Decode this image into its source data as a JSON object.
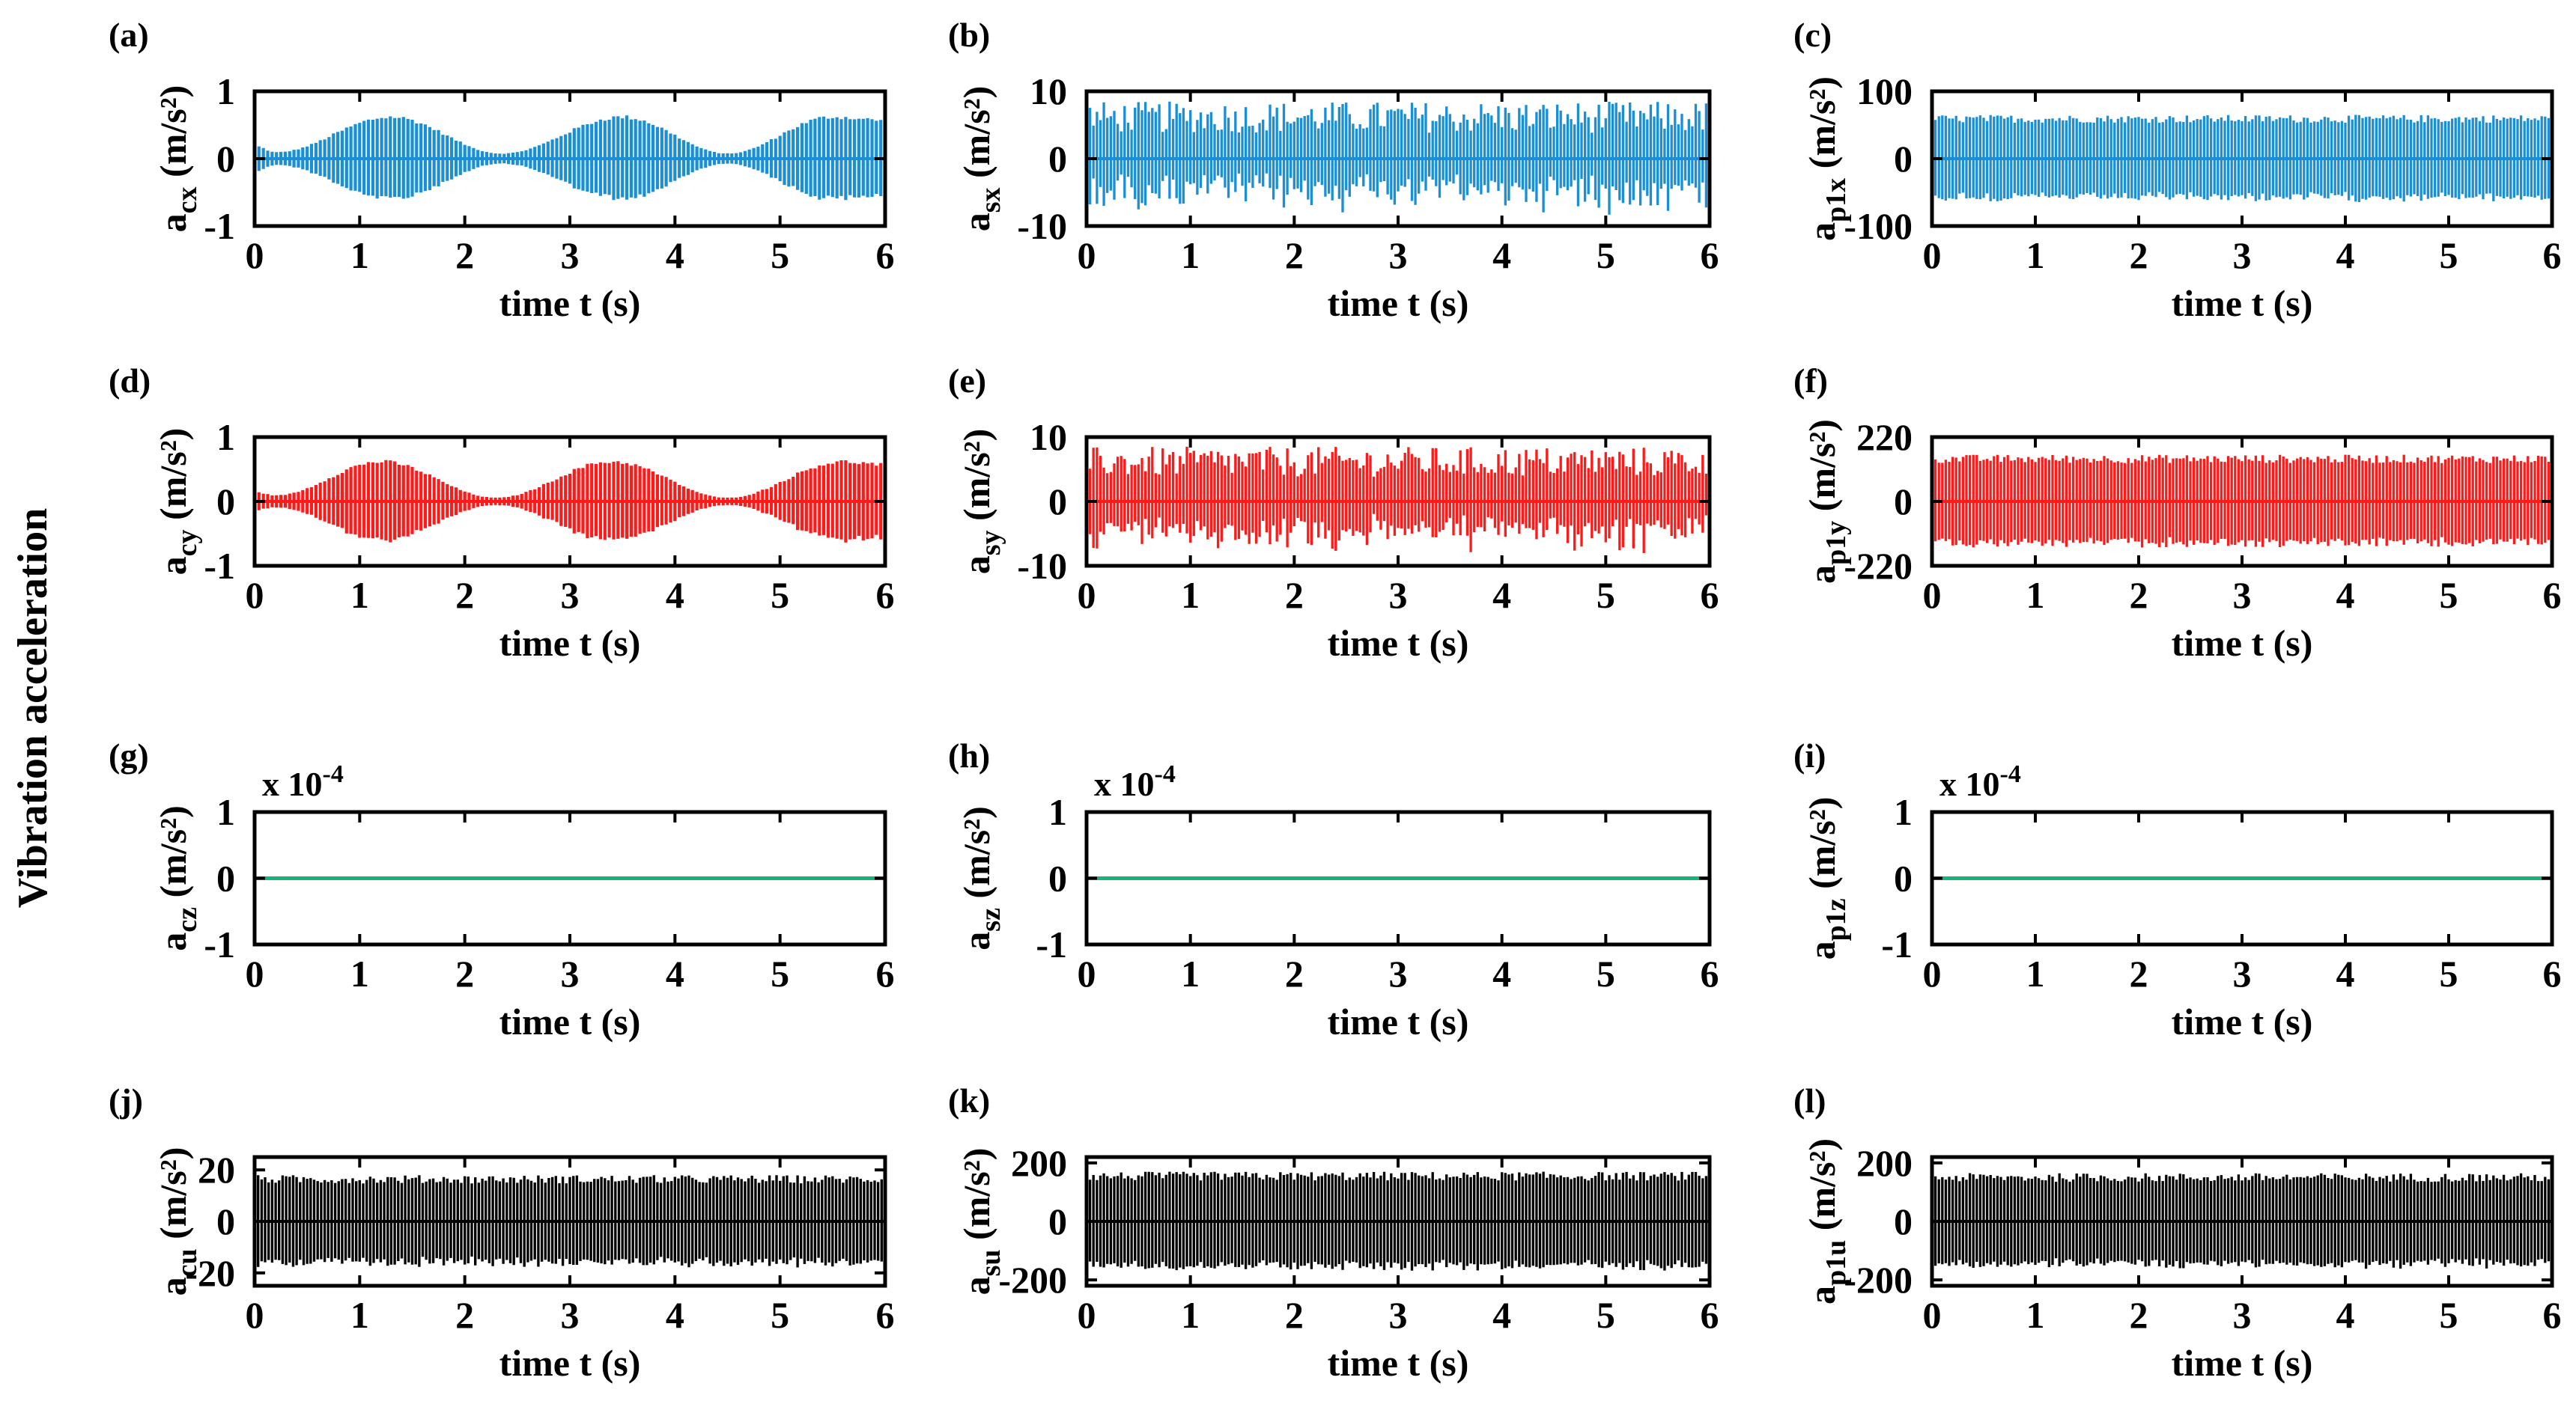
{
  "figure": {
    "ylabel": "Vibration acceleration",
    "xlabel": "time t (s)"
  },
  "colors": {
    "x_series": "#1a8fd6",
    "y_series": "#ff1a1a",
    "z_series": "#19b37a",
    "u_series": "#000000"
  },
  "chart_data": [
    {
      "panel": "(a)",
      "type": "line",
      "title": "",
      "ylabel": "a",
      "ysub": "cx",
      "yunit": "(m/s²)",
      "xlabel": "time t (s)",
      "xlim": [
        0,
        6
      ],
      "ylim": [
        -1,
        1
      ],
      "xticks": [
        "0",
        "1",
        "2",
        "3",
        "4",
        "5",
        "6"
      ],
      "yticks": [
        "1",
        "0",
        "-1"
      ],
      "color": "#1a8fd6",
      "signal": {
        "kind": "beat",
        "peak": 0.65,
        "envelope_t": [
          0,
          0.2,
          1.3,
          2.35,
          3.5,
          4.5,
          5.5,
          6.0
        ],
        "envelope_a": [
          0.2,
          0.1,
          0.65,
          0.08,
          0.65,
          0.08,
          0.65,
          0.6
        ],
        "cycles_per_s": 24
      }
    },
    {
      "panel": "(b)",
      "type": "line",
      "title": "",
      "ylabel": "a",
      "ysub": "sx",
      "yunit": "(m/s²)",
      "xlabel": "time t (s)",
      "xlim": [
        0,
        6
      ],
      "ylim": [
        -10,
        10
      ],
      "xticks": [
        "0",
        "1",
        "2",
        "3",
        "4",
        "5",
        "6"
      ],
      "yticks": [
        "10",
        "0",
        "-10"
      ],
      "color": "#1a8fd6",
      "signal": {
        "kind": "noise",
        "peak": 8.5,
        "cycles_per_s": 30
      }
    },
    {
      "panel": "(c)",
      "type": "line",
      "title": "",
      "ylabel": "a",
      "ysub": "p1x",
      "yunit": "(m/s²)",
      "xlabel": "time t (s)",
      "xlim": [
        0,
        6
      ],
      "ylim": [
        -100,
        100
      ],
      "xticks": [
        "0",
        "1",
        "2",
        "3",
        "4",
        "5",
        "6"
      ],
      "yticks": [
        "100",
        "0",
        "-100"
      ],
      "color": "#1a8fd6",
      "signal": {
        "kind": "band",
        "peak": 65,
        "cycles_per_s": 30
      }
    },
    {
      "panel": "(d)",
      "type": "line",
      "title": "",
      "ylabel": "a",
      "ysub": "cy",
      "yunit": "(m/s²)",
      "xlabel": "time t (s)",
      "xlim": [
        0,
        6
      ],
      "ylim": [
        -1,
        1
      ],
      "xticks": [
        "0",
        "1",
        "2",
        "3",
        "4",
        "5",
        "6"
      ],
      "yticks": [
        "1",
        "0",
        "-1"
      ],
      "color": "#ff1a1a",
      "signal": {
        "kind": "beat",
        "peak": 0.65,
        "envelope_t": [
          0,
          0.2,
          1.2,
          2.3,
          3.4,
          4.5,
          5.6,
          6.0
        ],
        "envelope_a": [
          0.15,
          0.1,
          0.65,
          0.06,
          0.65,
          0.06,
          0.65,
          0.6
        ],
        "cycles_per_s": 24
      }
    },
    {
      "panel": "(e)",
      "type": "line",
      "title": "",
      "ylabel": "a",
      "ysub": "sy",
      "yunit": "(m/s²)",
      "xlabel": "time t (s)",
      "xlim": [
        0,
        6
      ],
      "ylim": [
        -10,
        10
      ],
      "xticks": [
        "0",
        "1",
        "2",
        "3",
        "4",
        "5",
        "6"
      ],
      "yticks": [
        "10",
        "0",
        "-10"
      ],
      "color": "#ff1a1a",
      "signal": {
        "kind": "noise",
        "peak": 8.5,
        "cycles_per_s": 30
      }
    },
    {
      "panel": "(f)",
      "type": "line",
      "title": "",
      "ylabel": "a",
      "ysub": "p1y",
      "yunit": "(m/s²)",
      "xlabel": "time t (s)",
      "xlim": [
        0,
        6
      ],
      "ylim": [
        -220,
        220
      ],
      "xticks": [
        "0",
        "1",
        "2",
        "3",
        "4",
        "5",
        "6"
      ],
      "yticks": [
        "220",
        "0",
        "-220"
      ],
      "color": "#ff1a1a",
      "signal": {
        "kind": "band",
        "peak": 160,
        "cycles_per_s": 30
      }
    },
    {
      "panel": "(g)",
      "type": "line",
      "title": "",
      "ylabel": "a",
      "ysub": "cz",
      "yunit": "(m/s²)",
      "xlabel": "time t (s)",
      "xlim": [
        0,
        6
      ],
      "ylim": [
        -1,
        1
      ],
      "multiplier_base": "x 10",
      "multiplier_exp": "-4",
      "xticks": [
        "0",
        "1",
        "2",
        "3",
        "4",
        "5",
        "6"
      ],
      "yticks": [
        "1",
        "0",
        "-1"
      ],
      "color": "#19b37a",
      "signal": {
        "kind": "flat",
        "peak": 0
      }
    },
    {
      "panel": "(h)",
      "type": "line",
      "title": "",
      "ylabel": "a",
      "ysub": "sz",
      "yunit": "(m/s²)",
      "xlabel": "time t (s)",
      "xlim": [
        0,
        6
      ],
      "ylim": [
        -1,
        1
      ],
      "multiplier_base": "x 10",
      "multiplier_exp": "-4",
      "xticks": [
        "0",
        "1",
        "2",
        "3",
        "4",
        "5",
        "6"
      ],
      "yticks": [
        "1",
        "0",
        "-1"
      ],
      "color": "#19b37a",
      "signal": {
        "kind": "flat",
        "peak": 0
      }
    },
    {
      "panel": "(i)",
      "type": "line",
      "title": "",
      "ylabel": "a",
      "ysub": "p1z",
      "yunit": "(m/s²)",
      "xlabel": "time t (s)",
      "xlim": [
        0,
        6
      ],
      "ylim": [
        -1,
        1
      ],
      "multiplier_base": "x 10",
      "multiplier_exp": "-4",
      "xticks": [
        "0",
        "1",
        "2",
        "3",
        "4",
        "5",
        "6"
      ],
      "yticks": [
        "1",
        "0",
        "-1"
      ],
      "color": "#19b37a",
      "signal": {
        "kind": "flat",
        "peak": 0
      }
    },
    {
      "panel": "(j)",
      "type": "line",
      "title": "",
      "ylabel": "a",
      "ysub": "cu",
      "yunit": "(m/s²)",
      "xlabel": "time t (s)",
      "xlim": [
        0,
        6
      ],
      "ylim": [
        -25,
        25
      ],
      "xticks": [
        "0",
        "1",
        "2",
        "3",
        "4",
        "5",
        "6"
      ],
      "yticks": [
        "20",
        "0",
        "-20"
      ],
      "ytick_values": [
        20,
        0,
        -20
      ],
      "color": "#000000",
      "signal": {
        "kind": "band",
        "peak": 18,
        "cycles_per_s": 30
      }
    },
    {
      "panel": "(k)",
      "type": "line",
      "title": "",
      "ylabel": "a",
      "ysub": "su",
      "yunit": "(m/s²)",
      "xlabel": "time t (s)",
      "xlim": [
        0,
        6
      ],
      "ylim": [
        -220,
        220
      ],
      "xticks": [
        "0",
        "1",
        "2",
        "3",
        "4",
        "5",
        "6"
      ],
      "yticks": [
        "200",
        "0",
        "-200"
      ],
      "ytick_values": [
        200,
        0,
        -200
      ],
      "color": "#000000",
      "signal": {
        "kind": "band",
        "peak": 170,
        "cycles_per_s": 30
      }
    },
    {
      "panel": "(l)",
      "type": "line",
      "title": "",
      "ylabel": "a",
      "ysub": "p1u",
      "yunit": "(m/s²)",
      "xlabel": "time t (s)",
      "xlim": [
        0,
        6
      ],
      "ylim": [
        -220,
        220
      ],
      "xticks": [
        "0",
        "1",
        "2",
        "3",
        "4",
        "5",
        "6"
      ],
      "yticks": [
        "200",
        "0",
        "-200"
      ],
      "ytick_values": [
        200,
        0,
        -200
      ],
      "color": "#000000",
      "signal": {
        "kind": "band",
        "peak": 165,
        "cycles_per_s": 30
      }
    }
  ]
}
